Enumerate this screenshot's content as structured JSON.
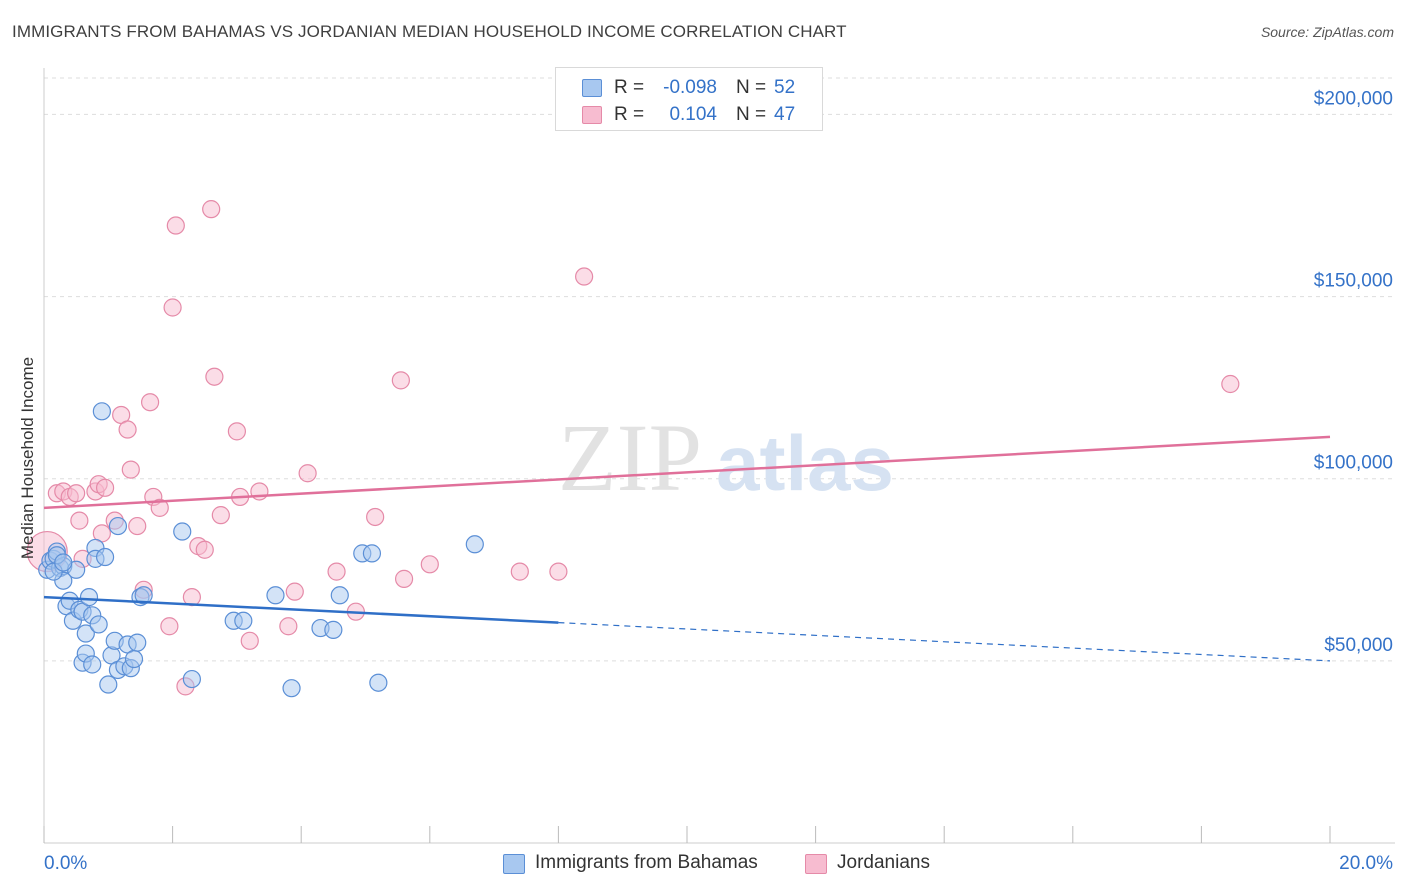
{
  "title": "IMMIGRANTS FROM BAHAMAS VS JORDANIAN MEDIAN HOUSEHOLD INCOME CORRELATION CHART",
  "source": "Source: ZipAtlas.com",
  "watermark": {
    "zip": "ZIP",
    "atlas": "atlas"
  },
  "stats": {
    "series1": {
      "r_label": "R =",
      "r_value": "-0.098",
      "n_label": "N =",
      "n_value": "52"
    },
    "series2": {
      "r_label": "R =",
      "r_value": "0.104",
      "n_label": "N =",
      "n_value": "47"
    }
  },
  "legend": {
    "series1": "Immigrants from Bahamas",
    "series2": "Jordanians"
  },
  "colors": {
    "series1_fill": "#a8c8f0",
    "series1_stroke": "#5b8fd6",
    "series1_line": "#2f6fc7",
    "series2_fill": "#f7bcd0",
    "series2_stroke": "#e58aa8",
    "series2_line": "#e0709a",
    "axis_text": "#3472c8",
    "grid": "#dddddd"
  },
  "chart_data": {
    "type": "scatter",
    "title": "IMMIGRANTS FROM BAHAMAS VS JORDANIAN MEDIAN HOUSEHOLD INCOME CORRELATION CHART",
    "xlabel": "",
    "ylabel": "Median Household Income",
    "xlim": [
      0,
      20
    ],
    "ylim": [
      0,
      210000
    ],
    "x_tick_labels": [
      "0.0%",
      "20.0%"
    ],
    "y_ticks": [
      50000,
      100000,
      150000,
      200000
    ],
    "y_tick_labels": [
      "$50,000",
      "$100,000",
      "$150,000",
      "$200,000"
    ],
    "grid": true,
    "legend_position": "bottom-center",
    "series": [
      {
        "name": "Immigrants from Bahamas",
        "r": -0.098,
        "n": 52,
        "trend": {
          "x": [
            0,
            8
          ],
          "y": [
            67500,
            60500
          ],
          "dashed_to": [
            20,
            50000
          ]
        },
        "points": [
          [
            0.05,
            75000
          ],
          [
            0.1,
            77500
          ],
          [
            0.15,
            78000
          ],
          [
            0.2,
            80000
          ],
          [
            0.25,
            75500
          ],
          [
            0.3,
            76000
          ],
          [
            0.3,
            72000
          ],
          [
            0.35,
            65000
          ],
          [
            0.4,
            66500
          ],
          [
            0.45,
            61000
          ],
          [
            0.5,
            75000
          ],
          [
            0.55,
            64000
          ],
          [
            0.6,
            63500
          ],
          [
            0.6,
            49500
          ],
          [
            0.65,
            52000
          ],
          [
            0.65,
            57500
          ],
          [
            0.7,
            67500
          ],
          [
            0.75,
            49000
          ],
          [
            0.75,
            62500
          ],
          [
            0.8,
            81000
          ],
          [
            0.8,
            78000
          ],
          [
            0.85,
            60000
          ],
          [
            0.9,
            118500
          ],
          [
            0.95,
            78500
          ],
          [
            1.0,
            43500
          ],
          [
            1.05,
            51500
          ],
          [
            1.1,
            55500
          ],
          [
            1.15,
            47500
          ],
          [
            1.25,
            48500
          ],
          [
            1.3,
            54500
          ],
          [
            1.35,
            48000
          ],
          [
            1.4,
            50500
          ],
          [
            1.45,
            55000
          ],
          [
            1.5,
            67500
          ],
          [
            1.55,
            68000
          ],
          [
            1.15,
            87000
          ],
          [
            2.15,
            85500
          ],
          [
            2.3,
            45000
          ],
          [
            2.95,
            61000
          ],
          [
            3.1,
            61000
          ],
          [
            3.6,
            68000
          ],
          [
            3.85,
            42500
          ],
          [
            4.3,
            59000
          ],
          [
            4.5,
            58500
          ],
          [
            4.6,
            68000
          ],
          [
            4.95,
            79500
          ],
          [
            5.1,
            79500
          ],
          [
            5.2,
            44000
          ],
          [
            6.7,
            82000
          ],
          [
            0.15,
            74500
          ],
          [
            0.2,
            79000
          ],
          [
            0.3,
            77000
          ]
        ]
      },
      {
        "name": "Jordanians",
        "r": 0.104,
        "n": 47,
        "trend": {
          "x": [
            0,
            20
          ],
          "y": [
            92000,
            111500
          ]
        },
        "points": [
          [
            0.05,
            80000
          ],
          [
            0.2,
            96000
          ],
          [
            0.3,
            96500
          ],
          [
            0.4,
            95000
          ],
          [
            0.5,
            96000
          ],
          [
            0.55,
            88500
          ],
          [
            0.6,
            78000
          ],
          [
            0.8,
            96500
          ],
          [
            0.85,
            98500
          ],
          [
            0.9,
            85000
          ],
          [
            0.95,
            97500
          ],
          [
            1.1,
            88500
          ],
          [
            1.2,
            117500
          ],
          [
            1.3,
            113500
          ],
          [
            1.35,
            102500
          ],
          [
            1.45,
            87000
          ],
          [
            1.55,
            69500
          ],
          [
            1.65,
            121000
          ],
          [
            1.7,
            95000
          ],
          [
            1.8,
            92000
          ],
          [
            1.95,
            59500
          ],
          [
            2.0,
            147000
          ],
          [
            2.05,
            169500
          ],
          [
            2.2,
            43000
          ],
          [
            2.3,
            67500
          ],
          [
            2.4,
            81500
          ],
          [
            2.5,
            80500
          ],
          [
            2.6,
            174000
          ],
          [
            2.65,
            128000
          ],
          [
            2.75,
            90000
          ],
          [
            3.0,
            113000
          ],
          [
            3.05,
            95000
          ],
          [
            3.2,
            55500
          ],
          [
            3.35,
            96500
          ],
          [
            3.8,
            59500
          ],
          [
            3.9,
            69000
          ],
          [
            4.1,
            101500
          ],
          [
            4.55,
            74500
          ],
          [
            4.85,
            63500
          ],
          [
            5.15,
            89500
          ],
          [
            5.55,
            127000
          ],
          [
            5.6,
            72500
          ],
          [
            6.0,
            76500
          ],
          [
            7.4,
            74500
          ],
          [
            8.0,
            74500
          ],
          [
            8.4,
            155500
          ],
          [
            18.45,
            126000
          ]
        ]
      }
    ]
  }
}
